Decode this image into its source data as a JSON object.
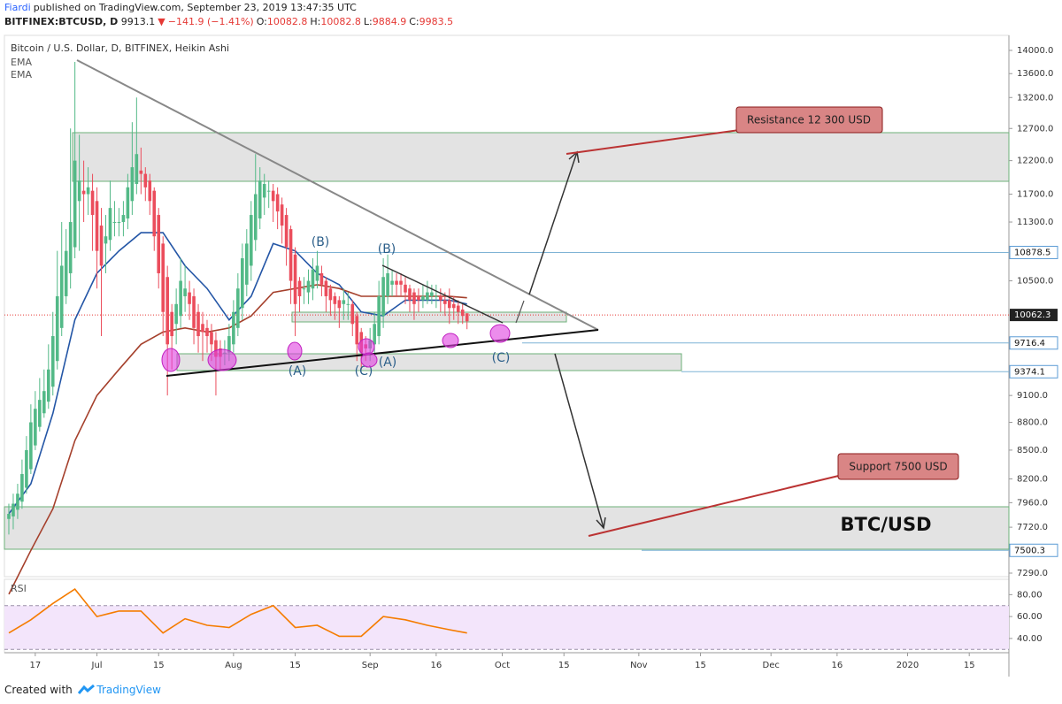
{
  "header": {
    "author": "Fiardi",
    "published": "published on TradingView.com, September 23, 2019 13:47:35 UTC",
    "symbol": "BITFINEX:BTCUSD, D",
    "last": 9913.1,
    "direction": "▼",
    "change": "−141.9 (−1.41%)",
    "ohlc": [
      {
        "label": "O:",
        "value": 10082.8
      },
      {
        "label": "H:",
        "value": 10082.8
      },
      {
        "label": "L:",
        "value": 9884.9
      },
      {
        "label": "C:",
        "value": 9983.5
      }
    ]
  },
  "chart_data": [
    {
      "type": "candlestick",
      "title": "Bitcoin / U.S. Dollar, D, BITFINEX, Heikin Ashi",
      "up_color": "#53b987",
      "down_color": "#eb4d5c",
      "log_scale": true,
      "grid": false,
      "xlim": [
        -1,
        227
      ],
      "ylim": [
        7258,
        14265
      ],
      "yticks": [
        {
          "value": 14000,
          "label": "14000.0"
        },
        {
          "value": 13600,
          "label": "13600.0"
        },
        {
          "value": 13200,
          "label": "13200.0"
        },
        {
          "value": 12700,
          "label": "12700.0"
        },
        {
          "value": 12200,
          "label": "12200.0"
        },
        {
          "value": 11700,
          "label": "11700.0"
        },
        {
          "value": 11300,
          "label": "11300.0"
        },
        {
          "value": 10500,
          "label": "10500.0"
        },
        {
          "value": 9100,
          "label": "9100.0"
        },
        {
          "value": 8800,
          "label": "8800.0"
        },
        {
          "value": 8500,
          "label": "8500.0"
        },
        {
          "value": 8200,
          "label": "8200.0"
        },
        {
          "value": 7960,
          "label": "7960.0"
        },
        {
          "value": 7720,
          "label": "7720.0"
        },
        {
          "value": 7290,
          "label": "7290.0"
        }
      ],
      "open": [
        7800,
        7825,
        7890,
        7970,
        8110,
        8300,
        8550,
        8750,
        8900,
        9030,
        9200,
        9500,
        9900,
        10300,
        10600,
        10950,
        11600,
        11750,
        11700,
        11750,
        11600,
        11250,
        11000,
        11050,
        11300,
        11300,
        11300,
        11350,
        11600,
        11850,
        12050,
        12000,
        11900,
        11750,
        11400,
        11000,
        10550,
        10100,
        9950,
        10050,
        10300,
        10350,
        10300,
        10100,
        9950,
        9900,
        9850,
        9750,
        9650,
        9600,
        9600,
        9700,
        9900,
        10150,
        10450,
        10700,
        11050,
        11350,
        11650,
        11750,
        11750,
        11700,
        11550,
        11400,
        11200,
        10850,
        10500,
        10400,
        10350,
        10400,
        10500,
        10600,
        10500,
        10400,
        10300,
        10250,
        10200,
        10200,
        10200,
        10050,
        9850,
        9700,
        9650,
        9700,
        9800,
        10050,
        10300,
        10450,
        10500,
        10500,
        10450,
        10400,
        10350,
        10300,
        10250,
        10250,
        10300,
        10300,
        10300,
        10250,
        10250,
        10200,
        10180,
        10130,
        10082.8
      ],
      "high": [
        7950,
        8050,
        8150,
        8400,
        8650,
        9000,
        9150,
        9300,
        9400,
        9700,
        10100,
        10900,
        11300,
        11200,
        12700,
        13800,
        12600,
        12200,
        12100,
        12000,
        11800,
        11500,
        11400,
        11900,
        11600,
        11500,
        11600,
        12000,
        12800,
        13200,
        12400,
        12100,
        12000,
        11800,
        11500,
        11100,
        10700,
        10200,
        10400,
        10800,
        10700,
        10500,
        10400,
        10200,
        10100,
        10000,
        9950,
        9850,
        9750,
        9750,
        9950,
        10250,
        10600,
        11000,
        11200,
        11600,
        12300,
        12100,
        12000,
        11900,
        11850,
        11800,
        11650,
        11500,
        11250,
        10950,
        10550,
        10550,
        10650,
        10800,
        10900,
        10700,
        10550,
        10450,
        10350,
        10300,
        10400,
        10350,
        10250,
        10100,
        9900,
        9800,
        9900,
        10100,
        10500,
        10800,
        10850,
        10650,
        10600,
        10600,
        10550,
        10450,
        10400,
        10400,
        10450,
        10500,
        10450,
        10450,
        10400,
        10350,
        10400,
        10300,
        10250,
        10200,
        10082.8
      ],
      "low": [
        7650,
        7700,
        7800,
        7900,
        8050,
        8250,
        8500,
        8700,
        8850,
        8950,
        9100,
        9400,
        9800,
        10200,
        10400,
        10800,
        10900,
        11300,
        11400,
        10900,
        10400,
        9800,
        10600,
        10900,
        11100,
        11100,
        11100,
        11200,
        11400,
        11700,
        11700,
        11600,
        11400,
        10900,
        10400,
        9800,
        9100,
        9400,
        9700,
        9900,
        10100,
        10000,
        9700,
        9600,
        9500,
        9600,
        9500,
        9100,
        9400,
        9450,
        9500,
        9600,
        9800,
        10000,
        10300,
        10500,
        10900,
        11200,
        11400,
        11500,
        11300,
        11200,
        11000,
        10700,
        10200,
        9800,
        10100,
        10200,
        10200,
        10250,
        10400,
        10300,
        10100,
        10050,
        10000,
        9900,
        10000,
        10000,
        9800,
        9500,
        9400,
        9500,
        9500,
        9600,
        9700,
        9900,
        10200,
        10300,
        10300,
        10300,
        10200,
        10100,
        10000,
        10100,
        10150,
        10200,
        10200,
        10150,
        10100,
        10050,
        9950,
        10000,
        9950,
        9950,
        9884.9
      ],
      "close": [
        7850,
        7950,
        8050,
        8250,
        8500,
        8800,
        8950,
        9050,
        9150,
        9400,
        9800,
        10300,
        10700,
        10900,
        11300,
        12200,
        11900,
        11700,
        11800,
        11400,
        10900,
        10700,
        11100,
        11500,
        11300,
        11300,
        11400,
        11800,
        12100,
        12300,
        12000,
        11800,
        11600,
        11100,
        10600,
        10100,
        9700,
        9800,
        10200,
        10500,
        10400,
        10200,
        9900,
        9800,
        9850,
        9800,
        9700,
        9550,
        9550,
        9600,
        9800,
        10100,
        10400,
        10800,
        11000,
        11400,
        11700,
        11900,
        11850,
        11750,
        11600,
        11450,
        11250,
        10950,
        10500,
        10200,
        10300,
        10400,
        10500,
        10650,
        10700,
        10450,
        10300,
        10250,
        10200,
        10150,
        10250,
        10200,
        9950,
        9700,
        9600,
        9650,
        9750,
        9950,
        10300,
        10550,
        10600,
        10500,
        10450,
        10450,
        10350,
        10250,
        10200,
        10250,
        10300,
        10350,
        10350,
        10300,
        10250,
        10200,
        10150,
        10150,
        10100,
        10050,
        9983.5
      ],
      "series": [
        {
          "name": "EMA",
          "color": "#2456a6",
          "x": [
            0,
            5,
            10,
            15,
            20,
            25,
            30,
            35,
            40,
            45,
            50,
            55,
            60,
            65,
            70,
            75,
            80,
            85,
            90,
            95,
            100,
            104
          ],
          "values": [
            7850,
            8150,
            8900,
            10000,
            10600,
            10900,
            11150,
            11150,
            10700,
            10400,
            10000,
            10300,
            11000,
            10900,
            10600,
            10450,
            10100,
            10050,
            10250,
            10250,
            10250,
            10200
          ]
        },
        {
          "name": "EMA",
          "color": "#a5402c",
          "x": [
            0,
            5,
            10,
            15,
            20,
            25,
            30,
            35,
            40,
            45,
            50,
            55,
            60,
            65,
            70,
            75,
            80,
            85,
            90,
            95,
            100,
            104
          ],
          "values": [
            7100,
            7500,
            7900,
            8600,
            9100,
            9400,
            9700,
            9850,
            9900,
            9850,
            9900,
            10050,
            10350,
            10400,
            10450,
            10400,
            10300,
            10300,
            10300,
            10300,
            10300,
            10280
          ]
        }
      ],
      "price_lines": [
        10878.5,
        9716.4,
        9374.1,
        7500.3
      ],
      "last_price": 10062.3,
      "annotations": [
        "(B)",
        "(B)",
        "(A)",
        "(C)",
        "(A)",
        "(C)"
      ],
      "callouts": [
        "Resistance 12 300 USD",
        "Support 7500 USD"
      ],
      "watermark": "BTC/USD"
    },
    {
      "type": "line",
      "title": "RSI",
      "xlim": [
        -1,
        227
      ],
      "ylim": [
        27,
        94
      ],
      "levels": [
        30,
        70
      ],
      "yticks": [
        {
          "value": 80,
          "label": "80.00"
        },
        {
          "value": 60,
          "label": "60.00"
        },
        {
          "value": 40,
          "label": "40.00"
        }
      ],
      "xticks": [
        {
          "value": 6,
          "label": "17"
        },
        {
          "value": 20,
          "label": "Jul"
        },
        {
          "value": 34,
          "label": "15"
        },
        {
          "value": 51,
          "label": "Aug"
        },
        {
          "value": 65,
          "label": "15"
        },
        {
          "value": 82,
          "label": "Sep"
        },
        {
          "value": 97,
          "label": "16"
        },
        {
          "value": 112,
          "label": "Oct"
        },
        {
          "value": 126,
          "label": "15"
        },
        {
          "value": 143,
          "label": "Nov"
        },
        {
          "value": 157,
          "label": "15"
        },
        {
          "value": 173,
          "label": "Dec"
        },
        {
          "value": 188,
          "label": "16"
        },
        {
          "value": 204,
          "label": "2020"
        },
        {
          "value": 218,
          "label": "15"
        }
      ],
      "series": [
        {
          "color": "#f57c00",
          "x": [
            0,
            5,
            10,
            15,
            20,
            25,
            30,
            35,
            40,
            45,
            50,
            55,
            60,
            65,
            70,
            75,
            80,
            85,
            90,
            95,
            100,
            104
          ],
          "values": [
            45,
            57,
            72,
            85,
            60,
            65,
            65,
            45,
            58,
            52,
            50,
            62,
            70,
            50,
            52,
            42,
            42,
            60,
            57,
            52,
            48,
            45
          ]
        }
      ]
    }
  ],
  "footer": {
    "created": "Created with",
    "brand": "TradingView"
  }
}
